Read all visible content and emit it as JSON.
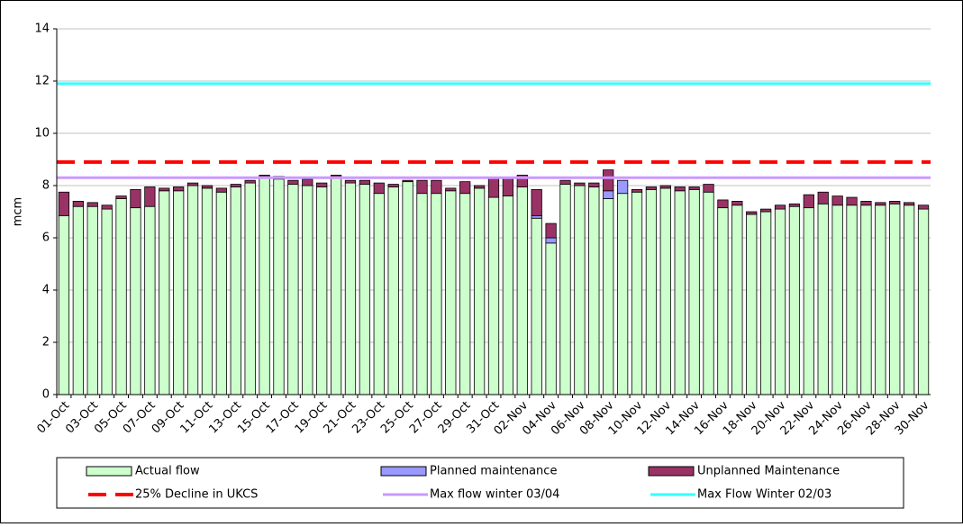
{
  "chart_data": {
    "type": "stacked-bar",
    "y_label": "mcm",
    "categories": [
      "01-Oct",
      null,
      "03-Oct",
      null,
      "05-Oct",
      null,
      "07-Oct",
      null,
      "09-Oct",
      null,
      "11-Oct",
      null,
      "13-Oct",
      null,
      "15-Oct",
      null,
      "17-Oct",
      null,
      "19-Oct",
      null,
      "21-Oct",
      null,
      "23-Oct",
      null,
      "25-Oct",
      null,
      "27-Oct",
      null,
      "29-Oct",
      null,
      "31-Oct",
      null,
      "02-Nov",
      null,
      "04-Nov",
      null,
      "06-Nov",
      null,
      "08-Nov",
      null,
      "10-Nov",
      null,
      "12-Nov",
      null,
      "14-Nov",
      null,
      "16-Nov",
      null,
      "18-Nov",
      null,
      "20-Nov",
      null,
      "22-Nov",
      null,
      "24-Nov",
      null,
      "26-Nov",
      null,
      "28-Nov",
      null,
      "30-Nov"
    ],
    "series": [
      {
        "name": "Actual flow",
        "color": "#ccffcc",
        "values": [
          6.85,
          7.2,
          7.2,
          7.1,
          7.5,
          7.15,
          7.2,
          7.8,
          7.8,
          8.0,
          7.9,
          7.75,
          7.95,
          8.1,
          8.35,
          8.25,
          8.05,
          8.0,
          7.95,
          8.35,
          8.1,
          8.05,
          7.7,
          7.95,
          8.15,
          7.7,
          7.7,
          7.8,
          7.7,
          7.9,
          7.55,
          7.6,
          7.95,
          6.75,
          5.8,
          8.05,
          8.0,
          7.95,
          7.5,
          7.7,
          7.75,
          7.85,
          7.9,
          7.8,
          7.85,
          7.75,
          7.15,
          7.25,
          6.9,
          7.0,
          7.1,
          7.2,
          7.15,
          7.3,
          7.25,
          7.25,
          7.25,
          7.25,
          7.3,
          7.25,
          7.1
        ]
      },
      {
        "name": "Planned maintenance",
        "color": "#9999ff",
        "values": [
          0,
          0,
          0,
          0,
          0,
          0,
          0,
          0,
          0,
          0,
          0,
          0,
          0,
          0,
          0,
          0,
          0,
          0,
          0,
          0,
          0,
          0,
          0,
          0,
          0,
          0,
          0,
          0,
          0,
          0,
          0,
          0,
          0,
          0.1,
          0.2,
          0,
          0,
          0,
          0.3,
          0.5,
          0,
          0,
          0,
          0,
          0,
          0,
          0,
          0,
          0,
          0,
          0,
          0,
          0,
          0,
          0,
          0,
          0,
          0,
          0,
          0,
          0
        ]
      },
      {
        "name": "Unplanned Maintenance",
        "color": "#993366",
        "values": [
          0.9,
          0.2,
          0.15,
          0.15,
          0.1,
          0.7,
          0.75,
          0.1,
          0.15,
          0.1,
          0.1,
          0.15,
          0.1,
          0.1,
          0.05,
          0.1,
          0.15,
          0.25,
          0.15,
          0.05,
          0.1,
          0.15,
          0.4,
          0.1,
          0.05,
          0.5,
          0.5,
          0.1,
          0.45,
          0.1,
          0.75,
          0.7,
          0.45,
          1.0,
          0.55,
          0.15,
          0.1,
          0.15,
          0.8,
          0,
          0.1,
          0.1,
          0.1,
          0.15,
          0.1,
          0.3,
          0.3,
          0.15,
          0.1,
          0.1,
          0.15,
          0.1,
          0.5,
          0.45,
          0.35,
          0.3,
          0.15,
          0.1,
          0.1,
          0.1,
          0.15
        ]
      }
    ],
    "reference_lines": [
      {
        "name": "25% Decline in UKCS",
        "color": "#ff0000",
        "value": 8.9,
        "dashed": true
      },
      {
        "name": "Max flow winter 03/04",
        "color": "#cc99ff",
        "value": 8.3,
        "dashed": false
      },
      {
        "name": "Max Flow Winter 02/03",
        "color": "#33ffff",
        "value": 11.9,
        "dashed": false
      }
    ],
    "ylim": [
      0,
      14
    ],
    "yticks": [
      0,
      2,
      4,
      6,
      8,
      10,
      12,
      14
    ],
    "grid": true
  }
}
